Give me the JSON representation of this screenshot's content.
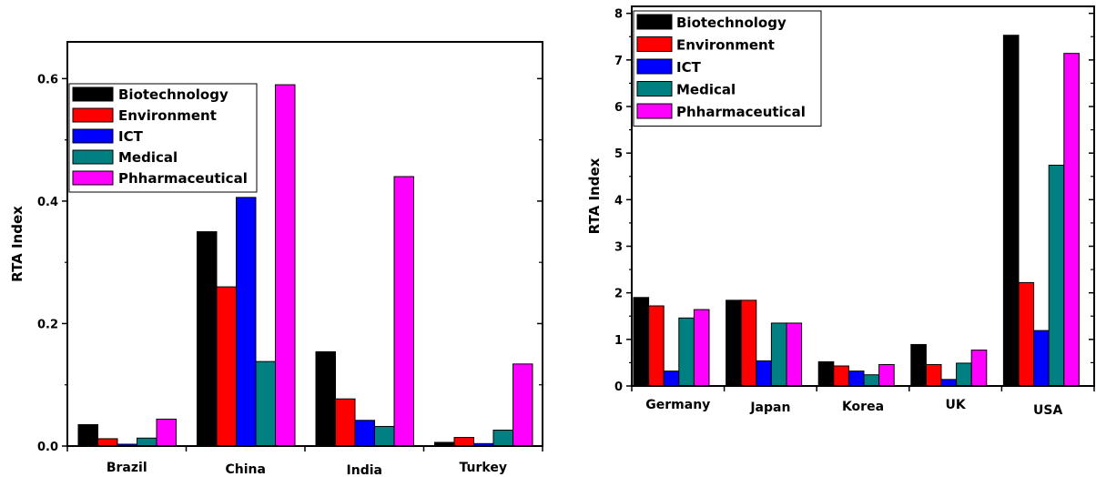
{
  "chart_data": [
    {
      "type": "bar",
      "title": "",
      "xlabel": "",
      "ylabel": "RTA Index",
      "ylim": [
        0,
        0.66
      ],
      "yticks": [
        "0.0",
        "0.2",
        "0.4",
        "0.6"
      ],
      "categories": [
        "Brazil",
        "China",
        "India",
        "Turkey"
      ],
      "legend_position": "top-left",
      "series": [
        {
          "name": "Biotechnology",
          "color": "#000000",
          "values": [
            0.035,
            0.35,
            0.154,
            0.006
          ]
        },
        {
          "name": "Environment",
          "color": "#ff0000",
          "values": [
            0.012,
            0.26,
            0.077,
            0.014
          ]
        },
        {
          "name": "ICT",
          "color": "#0000ff",
          "values": [
            0.003,
            0.406,
            0.042,
            0.004
          ]
        },
        {
          "name": "Medical",
          "color": "#008080",
          "values": [
            0.013,
            0.138,
            0.032,
            0.026
          ]
        },
        {
          "name": "Phharmaceutical",
          "color": "#ff00ff",
          "values": [
            0.044,
            0.59,
            0.44,
            0.134
          ]
        }
      ]
    },
    {
      "type": "bar",
      "title": "",
      "xlabel": "",
      "ylabel": "RTA Index",
      "ylim": [
        0,
        8.15
      ],
      "yticks": [
        "0",
        "1",
        "2",
        "3",
        "4",
        "5",
        "6",
        "7",
        "8"
      ],
      "categories": [
        "Germany",
        "Japan",
        "Korea",
        "UK",
        "USA"
      ],
      "legend_position": "top-left",
      "series": [
        {
          "name": "Biotechnology",
          "color": "#000000",
          "values": [
            1.9,
            1.84,
            0.52,
            0.89,
            7.53
          ]
        },
        {
          "name": "Environment",
          "color": "#ff0000",
          "values": [
            1.72,
            1.84,
            0.43,
            0.46,
            2.22
          ]
        },
        {
          "name": "ICT",
          "color": "#0000ff",
          "values": [
            0.32,
            0.54,
            0.32,
            0.14,
            1.19
          ]
        },
        {
          "name": "Medical",
          "color": "#008080",
          "values": [
            1.46,
            1.35,
            0.24,
            0.49,
            4.74
          ]
        },
        {
          "name": "Phharmaceutical",
          "color": "#ff00ff",
          "values": [
            1.64,
            1.35,
            0.46,
            0.77,
            7.14
          ]
        }
      ]
    }
  ]
}
